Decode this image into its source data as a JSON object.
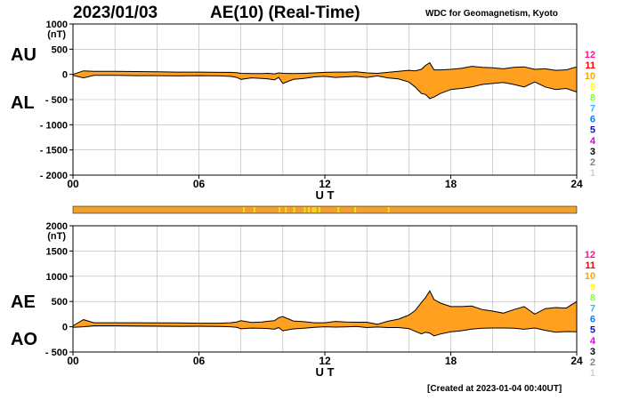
{
  "header": {
    "date": "2023/01/03",
    "title": "AE(10) (Real-Time)",
    "source": "WDC for Geomagnetism, Kyoto",
    "created": "[Created at 2023-01-04 00:40UT]"
  },
  "colors": {
    "fill": "#ffa020",
    "line": "#000000",
    "grid": "#b4b4b4",
    "coverage_bar": "#f0a030",
    "coverage_highlight": "#f0e020"
  },
  "station_scale": {
    "labels": [
      "12",
      "11",
      "10",
      "9",
      "8",
      "7",
      "6",
      "5",
      "4",
      "3",
      "2",
      "1"
    ],
    "colors": [
      "#ff1493",
      "#ff0000",
      "#ffa500",
      "#ffff00",
      "#80ff40",
      "#20c0ff",
      "#0080ff",
      "#1010c0",
      "#e000e0",
      "#000000",
      "#808080",
      "#d0d0d0"
    ]
  },
  "chart_data": [
    {
      "type": "area",
      "panel": "AU/AL",
      "left_labels": [
        "AU",
        "AL"
      ],
      "unit": "(nT)",
      "xlabel": "U T",
      "xlim": [
        0,
        24
      ],
      "xticks": [
        0,
        6,
        12,
        18,
        24
      ],
      "xtick_labels": [
        "00",
        "06",
        "12",
        "18",
        "24"
      ],
      "ylim": [
        -2000,
        1000
      ],
      "yticks": [
        1000,
        500,
        0,
        -500,
        -1000,
        -1500,
        -2000
      ],
      "ytick_labels": [
        "1000",
        "500",
        "0",
        "- 500",
        "- 1000",
        "- 1500",
        "- 2000"
      ],
      "grid": true,
      "x": [
        0,
        0.5,
        1,
        2,
        3,
        4,
        5,
        6,
        7,
        7.5,
        7.8,
        8,
        8.5,
        9,
        9.3,
        9.6,
        9.8,
        10,
        10.5,
        11,
        11.5,
        12,
        12.5,
        13,
        13.5,
        14,
        14.5,
        15,
        15.5,
        16,
        16.3,
        16.6,
        16.8,
        17,
        17.2,
        17.5,
        18,
        18.5,
        19,
        19.5,
        20,
        20.5,
        21,
        21.5,
        22,
        22.5,
        23,
        23.5,
        24
      ],
      "series": [
        {
          "name": "AU",
          "values": [
            0,
            70,
            60,
            60,
            55,
            50,
            45,
            45,
            40,
            40,
            35,
            20,
            15,
            15,
            20,
            10,
            30,
            20,
            15,
            20,
            30,
            40,
            45,
            45,
            50,
            30,
            20,
            40,
            60,
            80,
            70,
            100,
            180,
            230,
            90,
            90,
            100,
            120,
            160,
            140,
            130,
            110,
            140,
            150,
            100,
            110,
            80,
            90,
            150
          ]
        },
        {
          "name": "AL",
          "values": [
            -20,
            -70,
            -20,
            -20,
            -25,
            -25,
            -30,
            -25,
            -30,
            -40,
            -60,
            -100,
            -70,
            -80,
            -90,
            -110,
            -60,
            -180,
            -100,
            -80,
            -50,
            -40,
            -60,
            -50,
            -40,
            -60,
            -30,
            -70,
            -90,
            -150,
            -250,
            -380,
            -400,
            -480,
            -450,
            -380,
            -300,
            -280,
            -250,
            -200,
            -180,
            -160,
            -200,
            -250,
            -150,
            -250,
            -300,
            -280,
            -350
          ]
        }
      ]
    },
    {
      "type": "area",
      "panel": "AE/AO",
      "left_labels": [
        "AE",
        "AO"
      ],
      "unit": "(nT)",
      "xlabel": "U T",
      "xlim": [
        0,
        24
      ],
      "xticks": [
        0,
        6,
        12,
        18,
        24
      ],
      "xtick_labels": [
        "00",
        "06",
        "12",
        "18",
        "24"
      ],
      "ylim": [
        -500,
        2000
      ],
      "yticks": [
        2000,
        1500,
        1000,
        500,
        0,
        -500
      ],
      "ytick_labels": [
        "2000",
        "1500",
        "1000",
        "500",
        "0",
        "- 500"
      ],
      "grid": true,
      "x": [
        0,
        0.5,
        1,
        2,
        3,
        4,
        5,
        6,
        7,
        7.5,
        7.8,
        8,
        8.5,
        9,
        9.3,
        9.6,
        9.8,
        10,
        10.5,
        11,
        11.5,
        12,
        12.5,
        13,
        13.5,
        14,
        14.5,
        15,
        15.5,
        16,
        16.3,
        16.6,
        16.8,
        17,
        17.2,
        17.5,
        18,
        18.5,
        19,
        19.5,
        20,
        20.5,
        21,
        21.5,
        22,
        22.5,
        23,
        23.5,
        24
      ],
      "series": [
        {
          "name": "AE",
          "values": [
            20,
            140,
            80,
            80,
            80,
            75,
            75,
            70,
            70,
            80,
            95,
            120,
            85,
            95,
            110,
            120,
            180,
            200,
            115,
            100,
            80,
            80,
            105,
            95,
            90,
            90,
            50,
            110,
            150,
            230,
            320,
            480,
            580,
            710,
            540,
            470,
            400,
            400,
            410,
            340,
            310,
            270,
            340,
            400,
            250,
            360,
            380,
            370,
            500
          ]
        },
        {
          "name": "AO",
          "values": [
            -10,
            0,
            20,
            20,
            15,
            12,
            8,
            10,
            5,
            0,
            -12,
            -40,
            -27,
            -32,
            -35,
            -50,
            -15,
            -80,
            -42,
            -30,
            -10,
            0,
            -7,
            -2,
            5,
            -15,
            -5,
            -15,
            -15,
            -35,
            -90,
            -140,
            -110,
            -125,
            -180,
            -145,
            -100,
            -80,
            -45,
            -30,
            -25,
            -25,
            -30,
            -50,
            -25,
            -70,
            -110,
            -95,
            -100
          ]
        }
      ]
    }
  ],
  "coverage_bar": {
    "highlight_hours": [
      8.1,
      8.6,
      9.8,
      10.1,
      10.5,
      11.0,
      11.2,
      11.4,
      11.5,
      11.7,
      12.6,
      13.4,
      15.0
    ]
  }
}
